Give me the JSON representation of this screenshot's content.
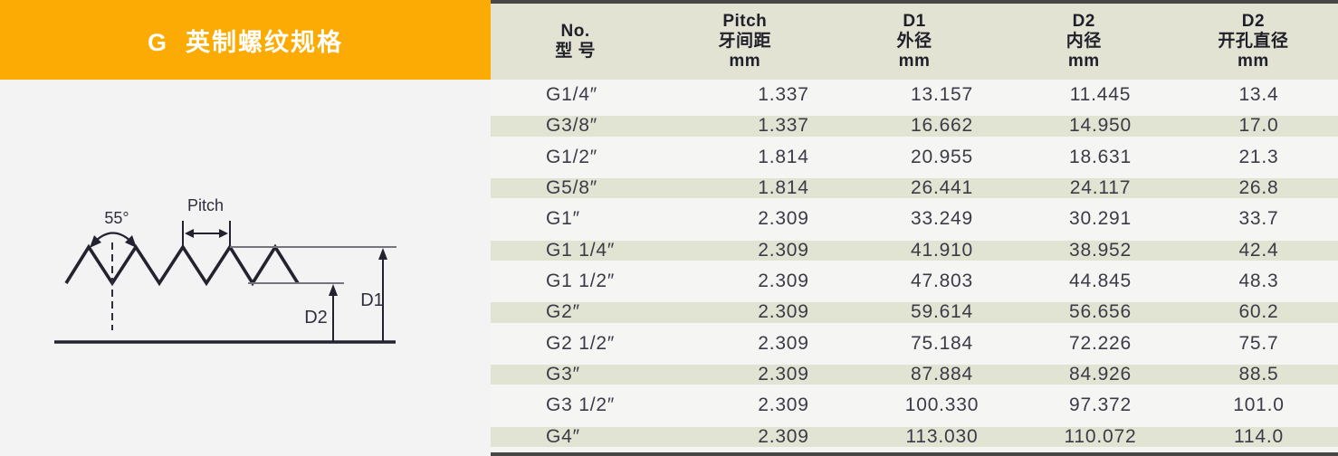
{
  "banner": {
    "title": "G  英制螺纹规格",
    "bg_color": "#FBAB04",
    "text_color": "#FFFFFF"
  },
  "diagram": {
    "angle_label": "55°",
    "pitch_label": "Pitch",
    "d1_label": "D1",
    "d2_label": "D2"
  },
  "table": {
    "headers": [
      {
        "lines": [
          "No.",
          "型 号",
          ""
        ]
      },
      {
        "lines": [
          "Pitch",
          "牙间距",
          "mm"
        ]
      },
      {
        "lines": [
          "D1",
          "外径",
          "mm"
        ]
      },
      {
        "lines": [
          "D2",
          "内径",
          "mm"
        ]
      },
      {
        "lines": [
          "D2",
          "开孔直径",
          "mm"
        ]
      }
    ],
    "rows": [
      [
        "G1/4″",
        "1.337",
        "13.157",
        "11.445",
        "13.4"
      ],
      [
        "G3/8″",
        "1.337",
        "16.662",
        "14.950",
        "17.0"
      ],
      [
        "G1/2″",
        "1.814",
        "20.955",
        "18.631",
        "21.3"
      ],
      [
        "G5/8″",
        "1.814",
        "26.441",
        "24.117",
        "26.8"
      ],
      [
        "G1″",
        "2.309",
        "33.249",
        "30.291",
        "33.7"
      ],
      [
        "G1 1/4″",
        "2.309",
        "41.910",
        "38.952",
        "42.4"
      ],
      [
        "G1 1/2″",
        "2.309",
        "47.803",
        "44.845",
        "48.3"
      ],
      [
        "G2″",
        "2.309",
        "59.614",
        "56.656",
        "60.2"
      ],
      [
        "G2 1/2″",
        "2.309",
        "75.184",
        "72.226",
        "75.7"
      ],
      [
        "G3″",
        "2.309",
        "87.884",
        "84.926",
        "88.5"
      ],
      [
        "G3 1/2″",
        "2.309",
        "100.330",
        "97.372",
        "101.0"
      ],
      [
        "G4″",
        "2.309",
        "113.030",
        "110.072",
        "114.0"
      ]
    ]
  },
  "colors": {
    "banner_orange": "#FBAB04",
    "header_beige": "#E3E3D3",
    "row_shaded": "#E2E4D3",
    "row_light": "#F5F5F3",
    "border_dark": "#474747",
    "text_dark": "#3B3B47",
    "diagram_line": "#23232F"
  }
}
